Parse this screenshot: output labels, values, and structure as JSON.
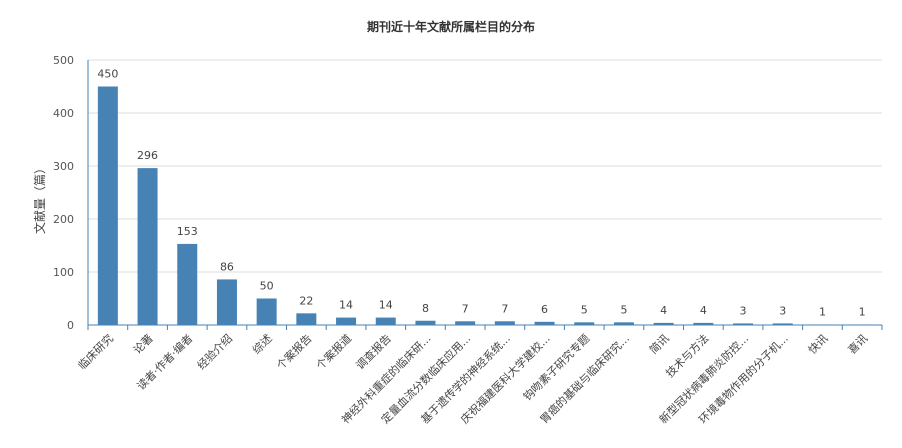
{
  "chart_data": {
    "type": "bar",
    "title": "期刊近十年文献所属栏目的分布",
    "ylabel": "文献量（篇）",
    "xlabel": "",
    "ylim": [
      0,
      500
    ],
    "yticks": [
      0,
      100,
      200,
      300,
      400,
      500
    ],
    "grid": true,
    "bar_color": "#4682b4",
    "categories": [
      "临床研究",
      "论著",
      "读者·作者·编者",
      "经验介绍",
      "综述",
      "个案报告",
      "个案报道",
      "调查报告",
      "神经外科重症的临床研...",
      "定量血流分数临床应用...",
      "基于遗传学的神经系统...",
      "庆祝福建医科大学建校...",
      "钩吻素子研究专题",
      "胃癌的基础与临床研究...",
      "简讯",
      "技术与方法",
      "新型冠状病毒肺炎防控...",
      "环境毒物作用的分子机...",
      "快讯",
      "喜讯"
    ],
    "values": [
      450,
      296,
      153,
      86,
      50,
      22,
      14,
      14,
      8,
      7,
      7,
      6,
      5,
      5,
      4,
      4,
      3,
      3,
      1,
      1
    ]
  }
}
